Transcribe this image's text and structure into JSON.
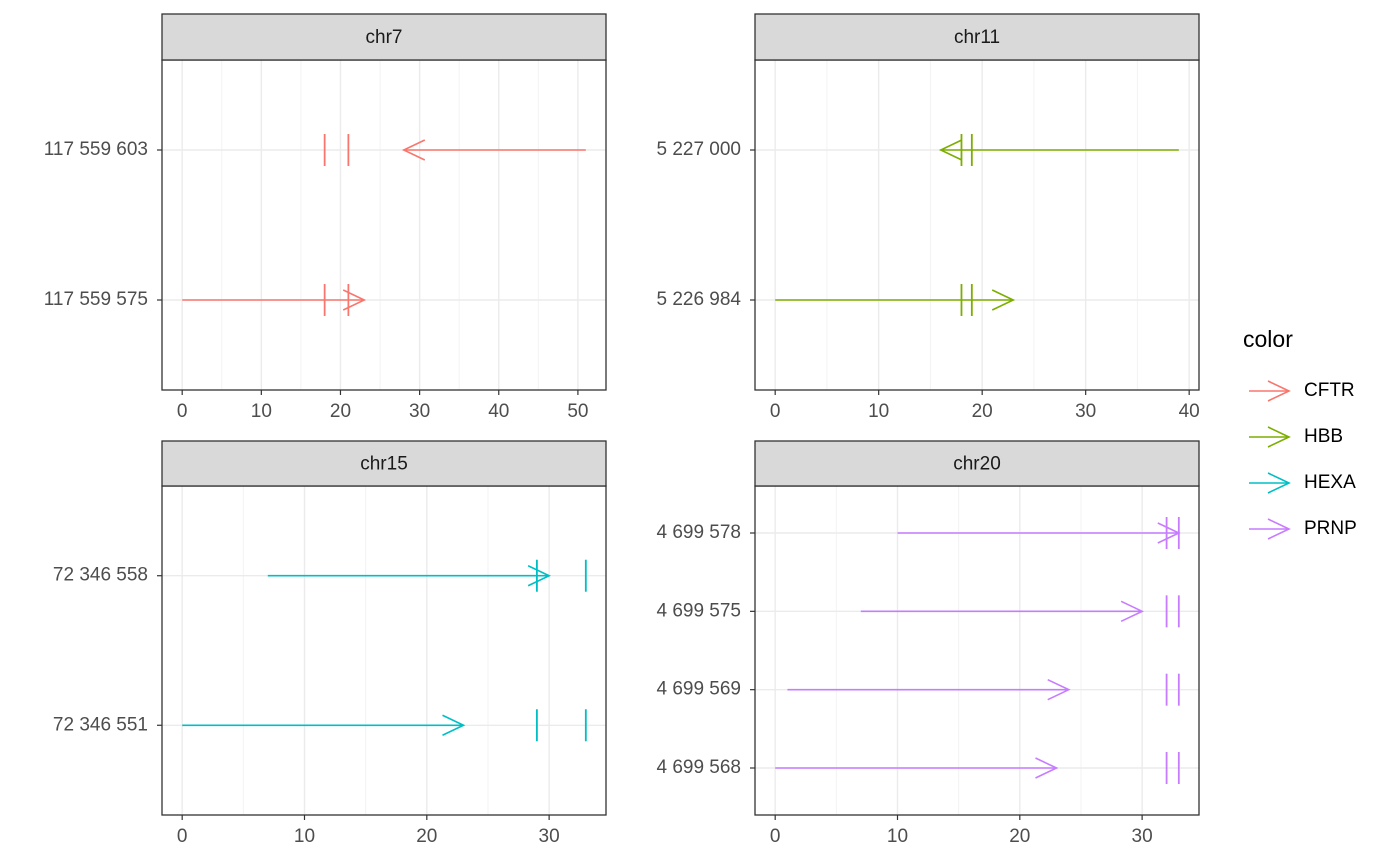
{
  "chart_data": {
    "type": "arrow",
    "legend_title": "color",
    "panels": [
      {
        "title": "chr7",
        "categories": [
          "117 559 575",
          "117 559 603"
        ],
        "xlim": [
          -2.55,
          53.55
        ],
        "xticks": [
          0,
          10,
          20,
          30,
          40,
          50
        ],
        "series": [
          {
            "name": "CFTR",
            "color": "#F8766D",
            "start": [
              0,
              51
            ],
            "end": [
              23,
              28
            ],
            "marks": [
              [
                18,
                21
              ],
              [
                18,
                21
              ]
            ]
          }
        ]
      },
      {
        "title": "chr11",
        "categories": [
          "5 226 984",
          "5 227 000"
        ],
        "xlim": [
          -1.95,
          40.95
        ],
        "xticks": [
          0,
          10,
          20,
          30,
          40
        ],
        "series": [
          {
            "name": "HBB",
            "color": "#7CAE00",
            "start": [
              0,
              39
            ],
            "end": [
              23,
              16
            ],
            "marks": [
              [
                18,
                19
              ],
              [
                18,
                19
              ]
            ]
          }
        ]
      },
      {
        "title": "chr15",
        "categories": [
          "72 346 551",
          "72 346 558"
        ],
        "xlim": [
          -1.65,
          34.65
        ],
        "xticks": [
          0,
          10,
          20,
          30
        ],
        "series": [
          {
            "name": "HEXA",
            "color": "#00BFC4",
            "start": [
              0,
              7
            ],
            "end": [
              23,
              30
            ],
            "marks": [
              [
                29,
                33
              ],
              [
                29,
                33
              ]
            ]
          }
        ]
      },
      {
        "title": "chr20",
        "categories": [
          "4 699 568",
          "4 699 569",
          "4 699 575",
          "4 699 578"
        ],
        "xlim": [
          -1.65,
          34.65
        ],
        "xticks": [
          0,
          10,
          20,
          30
        ],
        "series": [
          {
            "name": "PRNP",
            "color": "#C77CFF",
            "start": [
              0,
              1,
              7,
              10
            ],
            "end": [
              23,
              24,
              30,
              33
            ],
            "marks": [
              [
                32,
                33
              ],
              [
                32,
                33
              ],
              [
                32,
                33
              ],
              [
                32,
                33
              ]
            ]
          }
        ]
      }
    ]
  }
}
